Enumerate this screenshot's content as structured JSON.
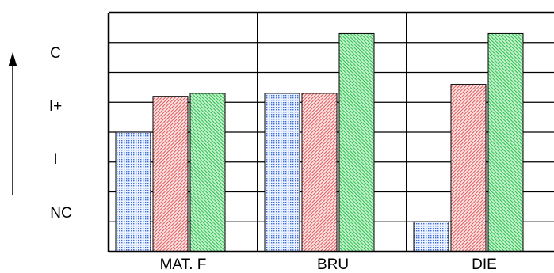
{
  "chart_data": {
    "type": "bar",
    "title": "",
    "xlabel": "",
    "ylabel": "",
    "categories": [
      "MAT. F",
      "BRU",
      "DIE"
    ],
    "y_levels": [
      "NC",
      "I",
      "I+",
      "C"
    ],
    "ylim": [
      0,
      8
    ],
    "grid": true,
    "legend": "none",
    "series": [
      {
        "color": "#3f6fd6",
        "pattern": "blue-dots",
        "values": [
          4.0,
          5.3,
          1.0
        ]
      },
      {
        "color": "#e35a5a",
        "pattern": "red-hatch",
        "values": [
          5.2,
          5.3,
          5.6
        ]
      },
      {
        "color": "#2fbf4f",
        "pattern": "green-hatch",
        "values": [
          5.3,
          7.3,
          7.3
        ]
      }
    ]
  }
}
